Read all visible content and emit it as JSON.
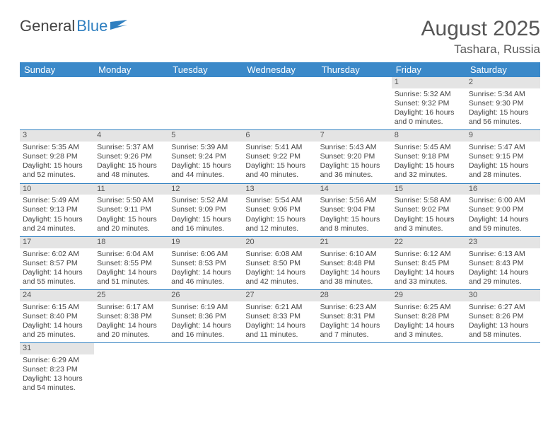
{
  "logo": {
    "part1": "General",
    "part2": "Blue"
  },
  "title": "August 2025",
  "location": "Tashara, Russia",
  "dayHeaders": [
    "Sunday",
    "Monday",
    "Tuesday",
    "Wednesday",
    "Thursday",
    "Friday",
    "Saturday"
  ],
  "colors": {
    "headerBg": "#3b89c9",
    "daynumBg": "#e4e4e4",
    "rule": "#2f7fc0",
    "text": "#444",
    "titleText": "#565656"
  },
  "typography": {
    "titleSize": 30,
    "locationSize": 17,
    "headerSize": 13,
    "cellSize": 10.5
  },
  "weeks": [
    [
      null,
      null,
      null,
      null,
      null,
      {
        "n": "1",
        "sr": "Sunrise: 5:32 AM",
        "ss": "Sunset: 9:32 PM",
        "dl": "Daylight: 16 hours and 0 minutes."
      },
      {
        "n": "2",
        "sr": "Sunrise: 5:34 AM",
        "ss": "Sunset: 9:30 PM",
        "dl": "Daylight: 15 hours and 56 minutes."
      }
    ],
    [
      {
        "n": "3",
        "sr": "Sunrise: 5:35 AM",
        "ss": "Sunset: 9:28 PM",
        "dl": "Daylight: 15 hours and 52 minutes."
      },
      {
        "n": "4",
        "sr": "Sunrise: 5:37 AM",
        "ss": "Sunset: 9:26 PM",
        "dl": "Daylight: 15 hours and 48 minutes."
      },
      {
        "n": "5",
        "sr": "Sunrise: 5:39 AM",
        "ss": "Sunset: 9:24 PM",
        "dl": "Daylight: 15 hours and 44 minutes."
      },
      {
        "n": "6",
        "sr": "Sunrise: 5:41 AM",
        "ss": "Sunset: 9:22 PM",
        "dl": "Daylight: 15 hours and 40 minutes."
      },
      {
        "n": "7",
        "sr": "Sunrise: 5:43 AM",
        "ss": "Sunset: 9:20 PM",
        "dl": "Daylight: 15 hours and 36 minutes."
      },
      {
        "n": "8",
        "sr": "Sunrise: 5:45 AM",
        "ss": "Sunset: 9:18 PM",
        "dl": "Daylight: 15 hours and 32 minutes."
      },
      {
        "n": "9",
        "sr": "Sunrise: 5:47 AM",
        "ss": "Sunset: 9:15 PM",
        "dl": "Daylight: 15 hours and 28 minutes."
      }
    ],
    [
      {
        "n": "10",
        "sr": "Sunrise: 5:49 AM",
        "ss": "Sunset: 9:13 PM",
        "dl": "Daylight: 15 hours and 24 minutes."
      },
      {
        "n": "11",
        "sr": "Sunrise: 5:50 AM",
        "ss": "Sunset: 9:11 PM",
        "dl": "Daylight: 15 hours and 20 minutes."
      },
      {
        "n": "12",
        "sr": "Sunrise: 5:52 AM",
        "ss": "Sunset: 9:09 PM",
        "dl": "Daylight: 15 hours and 16 minutes."
      },
      {
        "n": "13",
        "sr": "Sunrise: 5:54 AM",
        "ss": "Sunset: 9:06 PM",
        "dl": "Daylight: 15 hours and 12 minutes."
      },
      {
        "n": "14",
        "sr": "Sunrise: 5:56 AM",
        "ss": "Sunset: 9:04 PM",
        "dl": "Daylight: 15 hours and 8 minutes."
      },
      {
        "n": "15",
        "sr": "Sunrise: 5:58 AM",
        "ss": "Sunset: 9:02 PM",
        "dl": "Daylight: 15 hours and 3 minutes."
      },
      {
        "n": "16",
        "sr": "Sunrise: 6:00 AM",
        "ss": "Sunset: 9:00 PM",
        "dl": "Daylight: 14 hours and 59 minutes."
      }
    ],
    [
      {
        "n": "17",
        "sr": "Sunrise: 6:02 AM",
        "ss": "Sunset: 8:57 PM",
        "dl": "Daylight: 14 hours and 55 minutes."
      },
      {
        "n": "18",
        "sr": "Sunrise: 6:04 AM",
        "ss": "Sunset: 8:55 PM",
        "dl": "Daylight: 14 hours and 51 minutes."
      },
      {
        "n": "19",
        "sr": "Sunrise: 6:06 AM",
        "ss": "Sunset: 8:53 PM",
        "dl": "Daylight: 14 hours and 46 minutes."
      },
      {
        "n": "20",
        "sr": "Sunrise: 6:08 AM",
        "ss": "Sunset: 8:50 PM",
        "dl": "Daylight: 14 hours and 42 minutes."
      },
      {
        "n": "21",
        "sr": "Sunrise: 6:10 AM",
        "ss": "Sunset: 8:48 PM",
        "dl": "Daylight: 14 hours and 38 minutes."
      },
      {
        "n": "22",
        "sr": "Sunrise: 6:12 AM",
        "ss": "Sunset: 8:45 PM",
        "dl": "Daylight: 14 hours and 33 minutes."
      },
      {
        "n": "23",
        "sr": "Sunrise: 6:13 AM",
        "ss": "Sunset: 8:43 PM",
        "dl": "Daylight: 14 hours and 29 minutes."
      }
    ],
    [
      {
        "n": "24",
        "sr": "Sunrise: 6:15 AM",
        "ss": "Sunset: 8:40 PM",
        "dl": "Daylight: 14 hours and 25 minutes."
      },
      {
        "n": "25",
        "sr": "Sunrise: 6:17 AM",
        "ss": "Sunset: 8:38 PM",
        "dl": "Daylight: 14 hours and 20 minutes."
      },
      {
        "n": "26",
        "sr": "Sunrise: 6:19 AM",
        "ss": "Sunset: 8:36 PM",
        "dl": "Daylight: 14 hours and 16 minutes."
      },
      {
        "n": "27",
        "sr": "Sunrise: 6:21 AM",
        "ss": "Sunset: 8:33 PM",
        "dl": "Daylight: 14 hours and 11 minutes."
      },
      {
        "n": "28",
        "sr": "Sunrise: 6:23 AM",
        "ss": "Sunset: 8:31 PM",
        "dl": "Daylight: 14 hours and 7 minutes."
      },
      {
        "n": "29",
        "sr": "Sunrise: 6:25 AM",
        "ss": "Sunset: 8:28 PM",
        "dl": "Daylight: 14 hours and 3 minutes."
      },
      {
        "n": "30",
        "sr": "Sunrise: 6:27 AM",
        "ss": "Sunset: 8:26 PM",
        "dl": "Daylight: 13 hours and 58 minutes."
      }
    ],
    [
      {
        "n": "31",
        "sr": "Sunrise: 6:29 AM",
        "ss": "Sunset: 8:23 PM",
        "dl": "Daylight: 13 hours and 54 minutes."
      },
      null,
      null,
      null,
      null,
      null,
      null
    ]
  ]
}
